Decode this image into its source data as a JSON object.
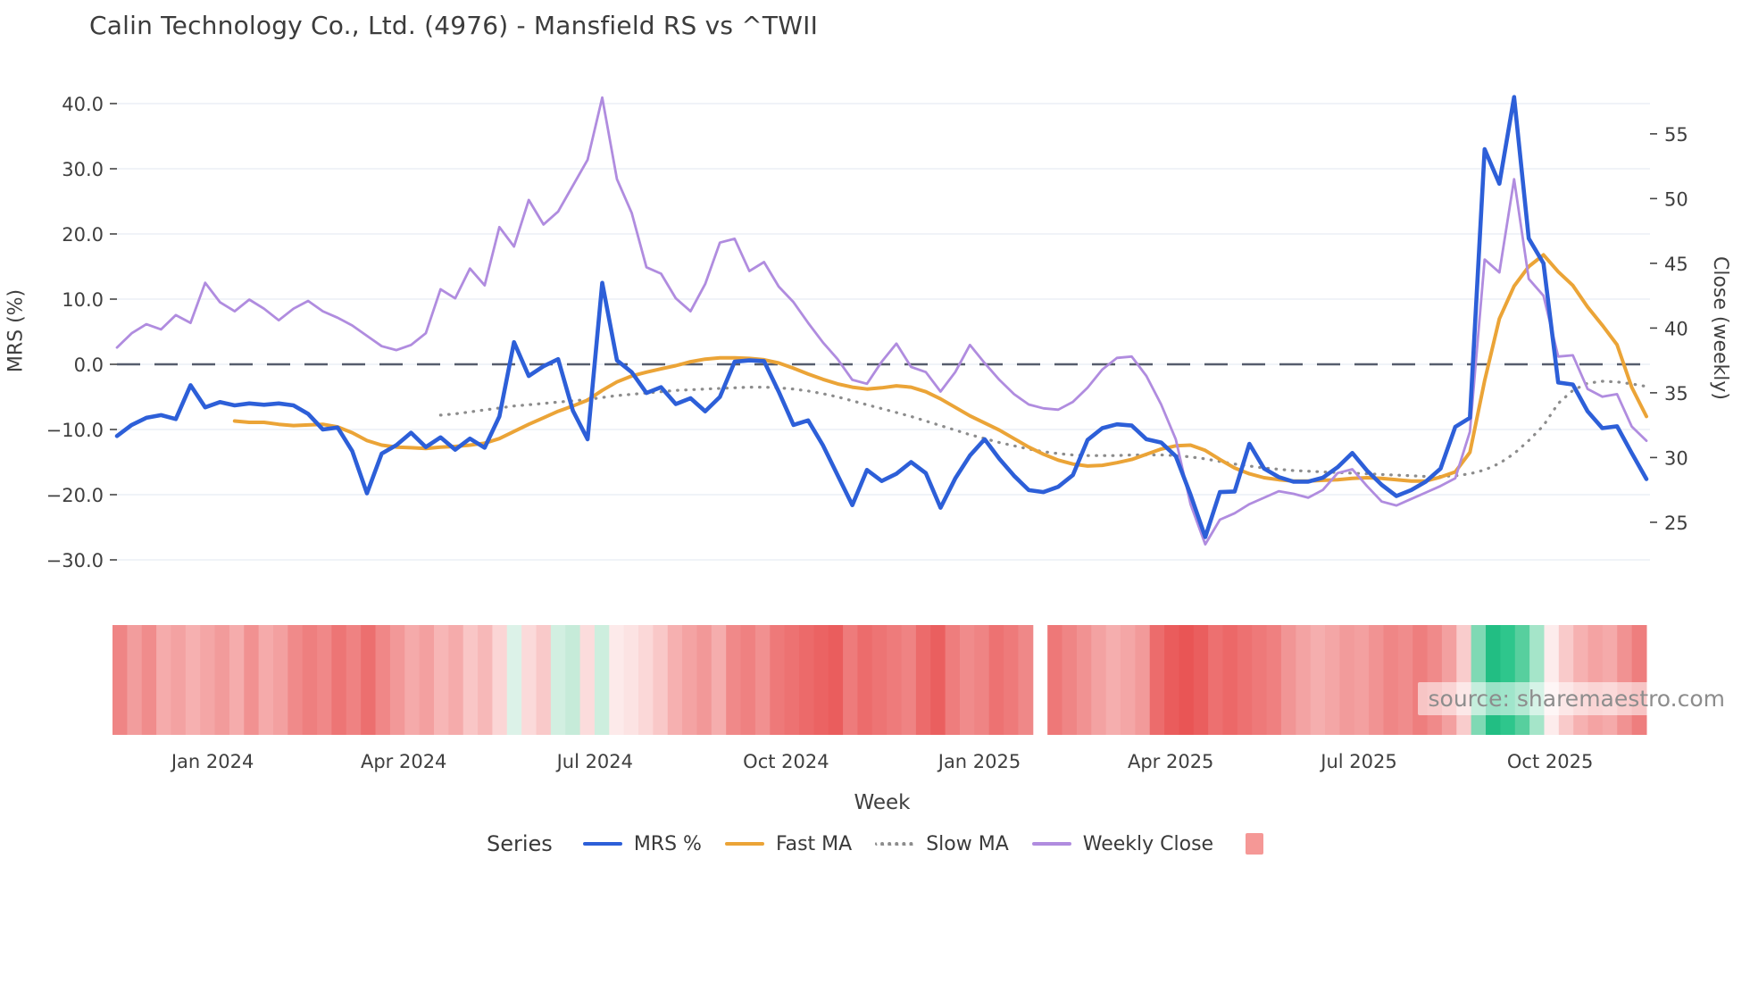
{
  "title": "Calin Technology Co., Ltd. (4976) - Mansfield RS vs ^TWII",
  "watermark": "source: sharemaestro.com",
  "axes": {
    "left_label": "MRS (%)",
    "right_label": "Close (weekly)",
    "x_label": "Week"
  },
  "legend": {
    "title": "Series",
    "items": [
      "MRS %",
      "Fast MA",
      "Slow MA",
      "Weekly Close"
    ],
    "heatmap_swatch_color": "#f59896"
  },
  "chart_data": {
    "type": "line",
    "title": "Calin Technology Co., Ltd. (4976) - Mansfield RS vs ^TWII",
    "xlabel": "Week",
    "ylabel_left": "MRS (%)",
    "ylabel_right": "Close (weekly)",
    "n_points": 105,
    "grid": true,
    "zero_dash_line_left_axis": 0.0,
    "left_ticks": [
      {
        "label": "40.0",
        "value": 40
      },
      {
        "label": "30.0",
        "value": 30
      },
      {
        "label": "20.0",
        "value": 20
      },
      {
        "label": "10.0",
        "value": 10
      },
      {
        "label": "0.0",
        "value": 0
      },
      {
        "label": "−10.0",
        "value": -10
      },
      {
        "label": "−20.0",
        "value": -20
      },
      {
        "label": "−30.0",
        "value": -30
      }
    ],
    "right_ticks": [
      {
        "label": "55",
        "value": 55
      },
      {
        "label": "50",
        "value": 50
      },
      {
        "label": "45",
        "value": 45
      },
      {
        "label": "40",
        "value": 40
      },
      {
        "label": "35",
        "value": 35
      },
      {
        "label": "30",
        "value": 30
      },
      {
        "label": "25",
        "value": 25
      }
    ],
    "x_ticks": [
      {
        "label": "Jan 2024",
        "index": 6.5
      },
      {
        "label": "Apr 2024",
        "index": 19.5
      },
      {
        "label": "Jul 2024",
        "index": 32.5
      },
      {
        "label": "Oct 2024",
        "index": 45.5
      },
      {
        "label": "Jan 2025",
        "index": 58.65
      },
      {
        "label": "Apr 2025",
        "index": 71.65
      },
      {
        "label": "Jul 2025",
        "index": 84.45
      },
      {
        "label": "Oct 2025",
        "index": 97.45
      }
    ],
    "series": [
      {
        "name": "MRS %",
        "axis": "left",
        "style": "solid",
        "color": "#2d5fd8",
        "width": 4.6,
        "values": [
          -11.0,
          -9.3,
          -8.2,
          -7.8,
          -8.4,
          -3.2,
          -6.6,
          -5.8,
          -6.3,
          -6.0,
          -6.2,
          -6.0,
          -6.3,
          -7.6,
          -10.0,
          -9.7,
          -13.3,
          -19.8,
          -13.7,
          -12.4,
          -10.5,
          -12.7,
          -11.2,
          -13.1,
          -11.4,
          -12.8,
          -8.0,
          3.4,
          -1.8,
          -0.3,
          0.8,
          -7.1,
          -11.5,
          12.5,
          0.6,
          -1.2,
          -4.4,
          -3.5,
          -6.1,
          -5.2,
          -7.2,
          -5.0,
          0.4,
          0.6,
          0.5,
          -4.2,
          -9.3,
          -8.6,
          -12.4,
          -17.0,
          -21.6,
          -16.2,
          -17.9,
          -16.8,
          -15.0,
          -16.7,
          -22.0,
          -17.5,
          -14.0,
          -11.5,
          -14.5,
          -17.1,
          -19.3,
          -19.6,
          -18.8,
          -17.0,
          -11.6,
          -9.8,
          -9.2,
          -9.4,
          -11.5,
          -12.0,
          -14.1,
          -20.0,
          -26.5,
          -19.6,
          -19.5,
          -12.2,
          -16.0,
          -17.3,
          -18.0,
          -18.0,
          -17.4,
          -15.8,
          -13.6,
          -16.3,
          -18.5,
          -20.2,
          -19.3,
          -18.0,
          -16.0,
          -9.6,
          -8.2,
          33.0,
          27.7,
          41.0,
          19.3,
          15.5,
          -2.8,
          -3.1,
          -7.2,
          -9.8,
          -9.5,
          -13.6,
          -17.6
        ]
      },
      {
        "name": "Fast MA",
        "axis": "left",
        "style": "solid",
        "color": "#eba437",
        "width": 4.0,
        "values": [
          null,
          null,
          null,
          null,
          null,
          null,
          null,
          null,
          -8.7,
          -8.9,
          -8.9,
          -9.2,
          -9.4,
          -9.3,
          -9.2,
          -9.6,
          -10.5,
          -11.7,
          -12.4,
          -12.7,
          -12.8,
          -12.9,
          -12.7,
          -12.6,
          -12.4,
          -12.1,
          -11.4,
          -10.3,
          -9.2,
          -8.2,
          -7.2,
          -6.4,
          -5.5,
          -4.0,
          -2.7,
          -1.8,
          -1.2,
          -0.7,
          -0.2,
          0.4,
          0.8,
          1.0,
          1.0,
          0.9,
          0.7,
          0.2,
          -0.6,
          -1.5,
          -2.3,
          -3.0,
          -3.5,
          -3.8,
          -3.6,
          -3.3,
          -3.5,
          -4.2,
          -5.3,
          -6.6,
          -7.9,
          -9.0,
          -10.1,
          -11.4,
          -12.7,
          -13.8,
          -14.7,
          -15.3,
          -15.6,
          -15.5,
          -15.1,
          -14.6,
          -13.8,
          -13.0,
          -12.5,
          -12.4,
          -13.2,
          -14.6,
          -15.9,
          -16.8,
          -17.4,
          -17.7,
          -17.9,
          -17.9,
          -17.8,
          -17.7,
          -17.5,
          -17.4,
          -17.5,
          -17.7,
          -17.9,
          -17.9,
          -17.3,
          -16.5,
          -13.5,
          -2.5,
          7.0,
          12.0,
          15.0,
          16.8,
          14.2,
          12.1,
          8.8,
          6.0,
          3.0,
          -3.5,
          -8.0
        ]
      },
      {
        "name": "Slow MA",
        "axis": "left",
        "style": "dotted",
        "color": "#8c8c8c",
        "width": 3.2,
        "values": [
          null,
          null,
          null,
          null,
          null,
          null,
          null,
          null,
          null,
          null,
          null,
          null,
          null,
          null,
          null,
          null,
          null,
          null,
          null,
          null,
          null,
          null,
          -7.8,
          -7.6,
          -7.3,
          -7.0,
          -6.7,
          -6.4,
          -6.2,
          -6.0,
          -5.8,
          -5.6,
          -5.4,
          -5.1,
          -4.8,
          -4.6,
          -4.4,
          -4.2,
          -4.0,
          -3.9,
          -3.8,
          -3.7,
          -3.6,
          -3.5,
          -3.5,
          -3.6,
          -3.8,
          -4.1,
          -4.5,
          -5.0,
          -5.6,
          -6.2,
          -6.8,
          -7.4,
          -8.0,
          -8.7,
          -9.4,
          -10.1,
          -10.8,
          -11.4,
          -12.0,
          -12.5,
          -13.0,
          -13.4,
          -13.7,
          -13.9,
          -14.0,
          -14.0,
          -14.0,
          -13.9,
          -13.9,
          -13.9,
          -14.0,
          -14.2,
          -14.5,
          -14.9,
          -15.3,
          -15.6,
          -15.9,
          -16.1,
          -16.3,
          -16.4,
          -16.5,
          -16.6,
          -16.7,
          -16.8,
          -16.9,
          -17.0,
          -17.1,
          -17.2,
          -17.2,
          -17.1,
          -16.8,
          -16.2,
          -15.2,
          -13.7,
          -11.7,
          -9.4,
          -6.0,
          -4.0,
          -2.9,
          -2.6,
          -2.7,
          -3.0,
          -3.4
        ]
      },
      {
        "name": "Weekly Close",
        "axis": "right",
        "style": "solid",
        "color": "#b08cdf",
        "width": 2.8,
        "values": [
          38.5,
          39.6,
          40.3,
          39.9,
          41.0,
          40.4,
          43.5,
          42.0,
          41.3,
          42.2,
          41.5,
          40.6,
          41.5,
          42.1,
          41.3,
          40.8,
          40.2,
          39.4,
          38.6,
          38.3,
          38.7,
          39.6,
          43.0,
          42.3,
          44.6,
          43.3,
          47.8,
          46.3,
          49.9,
          48.0,
          49.0,
          51.0,
          53.0,
          57.8,
          51.5,
          48.9,
          44.7,
          44.2,
          42.3,
          41.3,
          43.4,
          46.6,
          46.9,
          44.4,
          45.1,
          43.2,
          42.0,
          40.4,
          38.9,
          37.6,
          36.0,
          35.7,
          37.4,
          38.8,
          37.0,
          36.6,
          35.1,
          36.6,
          38.7,
          37.3,
          36.0,
          34.9,
          34.1,
          33.8,
          33.7,
          34.3,
          35.4,
          36.8,
          37.7,
          37.8,
          36.3,
          34.1,
          31.4,
          26.4,
          23.3,
          25.2,
          25.7,
          26.4,
          26.9,
          27.4,
          27.2,
          26.9,
          27.5,
          28.8,
          29.1,
          27.8,
          26.6,
          26.3,
          26.8,
          27.3,
          27.8,
          28.4,
          32.0,
          45.3,
          44.3,
          51.5,
          43.8,
          42.5,
          37.8,
          37.9,
          35.3,
          34.7,
          34.9,
          32.4,
          31.3
        ]
      }
    ],
    "heatmap_strip": {
      "description": "weekly return heatmap, red=down green=up, one gap cell",
      "colors": [
        "#ef8585",
        "#f29d9d",
        "#f08c8c",
        "#f5abab",
        "#f3a2a2",
        "#f6b0b0",
        "#f4a6a6",
        "#f29b9b",
        "#f5acac",
        "#f19191",
        "#f5aaaa",
        "#f3a0a0",
        "#f08a8a",
        "#ee7f7f",
        "#f08888",
        "#ed7575",
        "#ef8282",
        "#ec6f6f",
        "#f08787",
        "#f29898",
        "#f5aaaa",
        "#f3a0a0",
        "#f7b6b6",
        "#f5abab",
        "#f9c6c6",
        "#f7b8b8",
        "#fbd5d5",
        "#dcf2e8",
        "#fbdada",
        "#f9c9c9",
        "#d2efe1",
        "#c6ebd9",
        "#fbdcdc",
        "#cdeede",
        "#fdeaea",
        "#fce3e3",
        "#fbd8d8",
        "#f9c8c8",
        "#f6b0b0",
        "#f4a3a3",
        "#f29898",
        "#f5adad",
        "#f08989",
        "#ef8181",
        "#f19090",
        "#ee7979",
        "#ed7272",
        "#ec6a6a",
        "#eb6363",
        "#ea5d5d",
        "#ee7b7b",
        "#ec6c6c",
        "#ed7474",
        "#ee7b7b",
        "#ef8383",
        "#ec6b6b",
        "#ea5f5f",
        "#ee7d7d",
        "#f08b8b",
        "#ef8484",
        "#ed7272",
        "#ee7a7a",
        "#ef8888",
        null,
        "#ee7878",
        "#ef8585",
        "#f19292",
        "#f3a2a2",
        "#f5aeae",
        "#f4a6a6",
        "#f29a9a",
        "#ec6c6c",
        "#ea5c5c",
        "#e95555",
        "#ea5e5e",
        "#ed7070",
        "#ec6868",
        "#ed7171",
        "#ee7979",
        "#ef8080",
        "#f19595",
        "#f3a3a3",
        "#f5aeae",
        "#f4a6a6",
        "#f29b9b",
        "#f3a0a0",
        "#f19393",
        "#ef8686",
        "#f08c8c",
        "#ee7e7e",
        "#f08a8a",
        "#f3a0a0",
        "#f9cccc",
        "#7fd9b4",
        "#22be83",
        "#2ec68c",
        "#57cf9e",
        "#a5e5c9",
        "#fdecec",
        "#f9caca",
        "#f6b1b1",
        "#f4a3a3",
        "#f5aaaa",
        "#f19292",
        "#ee7e7e"
      ]
    }
  }
}
